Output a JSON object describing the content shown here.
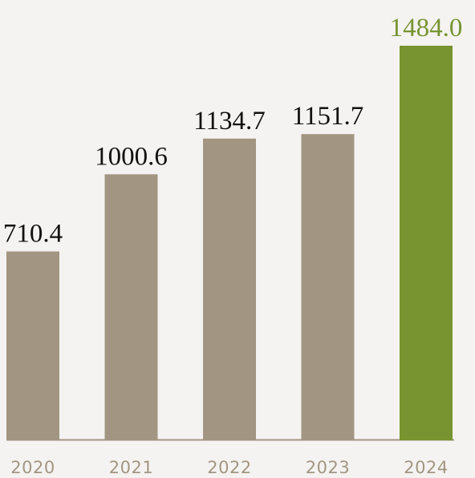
{
  "chart_data": {
    "type": "bar",
    "categories": [
      "2020",
      "2021",
      "2022",
      "2023",
      "2024"
    ],
    "values": [
      710.4,
      1000.6,
      1134.7,
      1151.7,
      1484.0
    ],
    "value_labels": [
      "710.4",
      "1000.6",
      "1134.7",
      "1151.7",
      "1484.0"
    ],
    "highlight_index": 4,
    "ylim": [
      0,
      1500
    ],
    "grid": false,
    "legend": "none",
    "colors": {
      "bar": "#a29682",
      "highlight_bar": "#779431",
      "label": "#111111",
      "highlight_label": "#779431",
      "tick_label": "#a29682",
      "baseline": "#a29682"
    }
  }
}
